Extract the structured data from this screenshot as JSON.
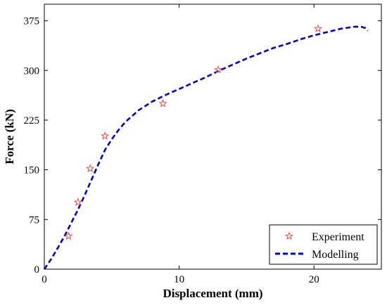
{
  "chart_data": {
    "type": "line",
    "title": "",
    "xlabel": "Displacement (mm)",
    "ylabel": "Force (kN)",
    "xlim": [
      0,
      25
    ],
    "ylim": [
      0,
      400
    ],
    "xticks": [
      0,
      10,
      20
    ],
    "yticks": [
      0,
      75,
      150,
      225,
      300,
      375
    ],
    "grid": false,
    "legend_position": "bottom-right",
    "series": [
      {
        "name": "Experiment",
        "kind": "scatter",
        "marker": "star",
        "color": "#ff3333",
        "x": [
          1.8,
          2.5,
          3.4,
          4.5,
          8.8,
          12.9,
          20.3
        ],
        "y": [
          50,
          101,
          152,
          201,
          250,
          301,
          363
        ]
      },
      {
        "name": "Modelling",
        "kind": "line",
        "line_style": "dashed",
        "color": "#0000cc",
        "x": [
          0,
          0.5,
          1,
          1.5,
          2,
          2.5,
          3,
          3.5,
          4,
          4.5,
          5,
          5.5,
          6,
          7,
          8,
          9,
          10,
          11,
          12,
          13,
          14,
          15,
          16,
          17,
          18,
          19,
          20,
          21,
          22,
          23,
          23.5,
          23.8,
          24
        ],
        "y": [
          0,
          15,
          32,
          50,
          70,
          90,
          112,
          135,
          158,
          180,
          196,
          210,
          222,
          240,
          253,
          263,
          272,
          281,
          290,
          300,
          309,
          318,
          326,
          334,
          340,
          347,
          353,
          358,
          363,
          366,
          366,
          364,
          360
        ]
      }
    ]
  }
}
